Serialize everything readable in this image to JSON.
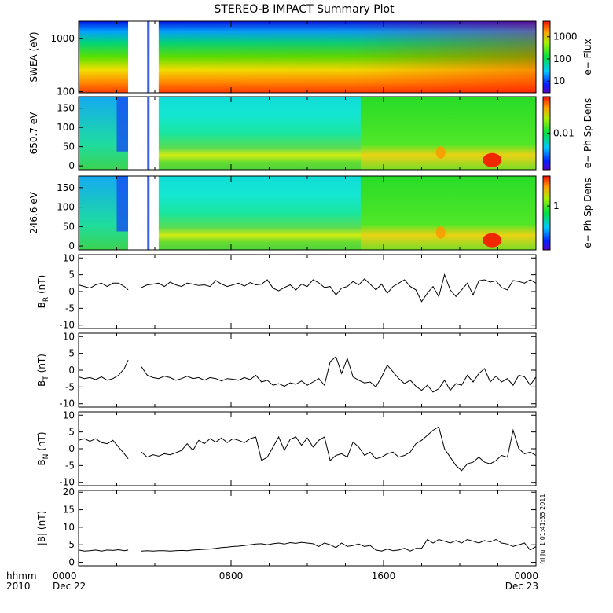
{
  "title": "STEREO-B IMPACT Summary Plot",
  "stamp": "fri Jul  1 01:41:35 2011",
  "time_axis": {
    "row_label": "hhmm",
    "year": "2010",
    "ticks": [
      {
        "h": 0,
        "label": "0000",
        "date": "Dec 22"
      },
      {
        "h": 8,
        "label": "0800",
        "date": ""
      },
      {
        "h": 16,
        "label": "1600",
        "date": ""
      },
      {
        "h": 24,
        "label": "0000",
        "date": "Dec 23"
      }
    ]
  },
  "chart_data": [
    {
      "type": "heatmap",
      "name": "swea",
      "ylabel": "SWEA (eV)",
      "yscale": "log",
      "ylim": [
        95,
        2100
      ],
      "yticks": [
        {
          "v": 100,
          "label": "100"
        },
        {
          "v": 1000,
          "label": "1000"
        }
      ],
      "colorbar": {
        "label": "e− Flux",
        "scale": "log",
        "range": [
          3,
          5000
        ],
        "ticks": [
          {
            "v": 10,
            "label": "10"
          },
          {
            "v": 100,
            "label": "100"
          },
          {
            "v": 1000,
            "label": "1000"
          }
        ]
      },
      "data_gaps_hours": [
        [
          2.6,
          3.6
        ],
        [
          3.72,
          4.2
        ]
      ]
    },
    {
      "type": "heatmap",
      "name": "pad650",
      "ylabel": "650.7 eV",
      "ylim": [
        -10,
        180
      ],
      "yticks": [
        {
          "v": 0,
          "label": "0"
        },
        {
          "v": 50,
          "label": "50"
        },
        {
          "v": 100,
          "label": "100"
        },
        {
          "v": 150,
          "label": "150"
        }
      ],
      "colorbar": {
        "label": "e− Ph Sp Dens",
        "scale": "log",
        "range": [
          0.002,
          0.05
        ],
        "ticks": [
          {
            "v": 0.01,
            "label": "0.01"
          }
        ]
      },
      "data_gaps_hours": [
        [
          2.6,
          3.6
        ],
        [
          3.72,
          4.2
        ]
      ]
    },
    {
      "type": "heatmap",
      "name": "pad246",
      "ylabel": "246.6 eV",
      "ylim": [
        -10,
        180
      ],
      "yticks": [
        {
          "v": 0,
          "label": "0"
        },
        {
          "v": 50,
          "label": "50"
        },
        {
          "v": 100,
          "label": "100"
        },
        {
          "v": 150,
          "label": "150"
        }
      ],
      "colorbar": {
        "label": "e− Ph Sp Dens",
        "scale": "log",
        "range": [
          0.2,
          3
        ],
        "ticks": [
          {
            "v": 1,
            "label": "1"
          }
        ]
      },
      "data_gaps_hours": [
        [
          2.6,
          3.6
        ],
        [
          3.72,
          4.2
        ]
      ]
    },
    {
      "type": "line",
      "name": "br",
      "ylabel": "B",
      "ysub": "R",
      "yunit": "(nT)",
      "ylim": [
        -11,
        11
      ],
      "yticks": [
        -10,
        -5,
        0,
        5,
        10
      ],
      "x": [
        0,
        0.3,
        0.6,
        0.9,
        1.2,
        1.5,
        1.8,
        2.1,
        2.4,
        2.6,
        3.0,
        3.3,
        3.6,
        3.9,
        4.2,
        4.5,
        4.8,
        5.1,
        5.4,
        5.7,
        6.0,
        6.3,
        6.6,
        6.9,
        7.2,
        7.5,
        7.8,
        8.1,
        8.4,
        8.7,
        9.0,
        9.3,
        9.6,
        9.9,
        10.2,
        10.5,
        10.8,
        11.1,
        11.4,
        11.7,
        12.0,
        12.3,
        12.6,
        12.9,
        13.2,
        13.5,
        13.8,
        14.1,
        14.4,
        14.7,
        15.0,
        15.3,
        15.6,
        15.9,
        16.2,
        16.5,
        16.8,
        17.1,
        17.4,
        17.7,
        18.0,
        18.3,
        18.6,
        18.9,
        19.2,
        19.5,
        19.8,
        20.1,
        20.4,
        20.7,
        21.0,
        21.3,
        21.6,
        21.9,
        22.2,
        22.5,
        22.8,
        23.1,
        23.4,
        23.7,
        24.0
      ],
      "y": [
        2,
        1.5,
        1,
        2,
        2.5,
        1.5,
        2.5,
        2.5,
        1.5,
        0.5,
        null,
        1.2,
        2,
        2.2,
        2.5,
        1.5,
        2.8,
        2,
        1.5,
        2.5,
        2.2,
        1.8,
        2,
        1.5,
        3.3,
        2.2,
        1.5,
        2,
        2.5,
        1.6,
        2.7,
        2,
        2.2,
        3.5,
        1,
        0.2,
        1.2,
        2,
        0.5,
        2.2,
        1.5,
        3.5,
        2.6,
        1.2,
        1.5,
        -1,
        1,
        1.5,
        3,
        2,
        3.8,
        2.2,
        0.5,
        2.2,
        -0.5,
        1.5,
        2.5,
        3.5,
        1.5,
        0.5,
        -3,
        -0.5,
        1.5,
        -1.5,
        5,
        0.5,
        -1.5,
        0.5,
        2.5,
        -1,
        3.2,
        3.5,
        2.8,
        3.2,
        1.2,
        0.5,
        3.3,
        3,
        2.5,
        3.5,
        2.5
      ]
    },
    {
      "type": "line",
      "name": "bt",
      "ylabel": "B",
      "ysub": "T",
      "yunit": "(nT)",
      "ylim": [
        -11,
        11
      ],
      "yticks": [
        -10,
        -5,
        0,
        5,
        10
      ],
      "x": [
        0,
        0.3,
        0.6,
        0.9,
        1.2,
        1.5,
        1.8,
        2.1,
        2.4,
        2.6,
        3.0,
        3.3,
        3.6,
        3.9,
        4.2,
        4.5,
        4.8,
        5.1,
        5.4,
        5.7,
        6.0,
        6.3,
        6.6,
        6.9,
        7.2,
        7.5,
        7.8,
        8.1,
        8.4,
        8.7,
        9.0,
        9.3,
        9.6,
        9.9,
        10.2,
        10.5,
        10.8,
        11.1,
        11.4,
        11.7,
        12.0,
        12.3,
        12.6,
        12.9,
        13.2,
        13.5,
        13.8,
        14.1,
        14.4,
        14.7,
        15.0,
        15.3,
        15.6,
        15.9,
        16.2,
        16.5,
        16.8,
        17.1,
        17.4,
        17.7,
        18.0,
        18.3,
        18.6,
        18.9,
        19.2,
        19.5,
        19.8,
        20.1,
        20.4,
        20.7,
        21.0,
        21.3,
        21.6,
        21.9,
        22.2,
        22.5,
        22.8,
        23.1,
        23.4,
        23.7,
        24.0
      ],
      "y": [
        -2,
        -2.5,
        -2.2,
        -2.8,
        -2,
        -3,
        -2.5,
        -1.5,
        0.5,
        3,
        null,
        1,
        -1.5,
        -2.2,
        -2.5,
        -1.8,
        -2.2,
        -3,
        -2.5,
        -1.8,
        -2.5,
        -2.2,
        -3,
        -2.2,
        -2.5,
        -3.2,
        -2.5,
        -2.7,
        -3,
        -2.2,
        -2.8,
        -1.5,
        -3.5,
        -3,
        -4.5,
        -4,
        -4.8,
        -3.8,
        -4.2,
        -3.2,
        -4.5,
        -3.5,
        -2.5,
        -4.5,
        2.5,
        4,
        -1,
        3.5,
        -2,
        -3,
        -3.8,
        -3.5,
        -5,
        -2,
        1.5,
        -0.5,
        -2.5,
        -4,
        -3,
        -4.8,
        -6,
        -4.5,
        -6.5,
        -5.5,
        -3,
        -6,
        -4,
        -4.5,
        -1.5,
        -3.5,
        -1,
        0.5,
        -3.5,
        -1.8,
        -3.5,
        -2.5,
        -4.5,
        -1.5,
        -2,
        -4.5,
        -2
      ]
    },
    {
      "type": "line",
      "name": "bn",
      "ylabel": "B",
      "ysub": "N",
      "yunit": "(nT)",
      "ylim": [
        -11,
        11
      ],
      "yticks": [
        -10,
        -5,
        0,
        5,
        10
      ],
      "x": [
        0,
        0.3,
        0.6,
        0.9,
        1.2,
        1.5,
        1.8,
        2.1,
        2.4,
        2.6,
        3.0,
        3.3,
        3.6,
        3.9,
        4.2,
        4.5,
        4.8,
        5.1,
        5.4,
        5.7,
        6.0,
        6.3,
        6.6,
        6.9,
        7.2,
        7.5,
        7.8,
        8.1,
        8.4,
        8.7,
        9.0,
        9.3,
        9.6,
        9.9,
        10.2,
        10.5,
        10.8,
        11.1,
        11.4,
        11.7,
        12.0,
        12.3,
        12.6,
        12.9,
        13.2,
        13.5,
        13.8,
        14.1,
        14.4,
        14.7,
        15.0,
        15.3,
        15.6,
        15.9,
        16.2,
        16.5,
        16.8,
        17.1,
        17.4,
        17.7,
        18.0,
        18.3,
        18.6,
        18.9,
        19.2,
        19.5,
        19.8,
        20.1,
        20.4,
        20.7,
        21.0,
        21.3,
        21.6,
        21.9,
        22.2,
        22.5,
        22.8,
        23.1,
        23.4,
        23.7,
        24.0
      ],
      "y": [
        2.5,
        3,
        2.2,
        3,
        1.8,
        1.5,
        2.5,
        0.5,
        -1.5,
        -3,
        null,
        -1,
        -2.5,
        -1.8,
        -2.2,
        -1.5,
        -1.8,
        -1.2,
        -0.5,
        1.5,
        -0.5,
        2.5,
        1.5,
        3,
        2,
        3.2,
        1.8,
        3,
        2.5,
        1.8,
        3,
        3.5,
        -3.5,
        -2.5,
        0.5,
        3.5,
        -0.5,
        2.8,
        3.5,
        1,
        3.2,
        0.5,
        2.5,
        3.5,
        -3.5,
        -2,
        -1.5,
        -2.5,
        2,
        0.5,
        -2,
        -1,
        -3,
        -2.5,
        -1.5,
        -1,
        -2.5,
        -2,
        -1,
        1.5,
        2.5,
        4,
        5.5,
        6.5,
        0,
        -2.5,
        -5,
        -6.5,
        -4.5,
        -4,
        -2.5,
        -4,
        -4.5,
        -3.5,
        -2,
        -2.5,
        5.5,
        0,
        -1.5,
        -1,
        -2
      ]
    },
    {
      "type": "line",
      "name": "bmag",
      "ylabel": "|B| (nT)",
      "ylim": [
        -1,
        20.5
      ],
      "yticks": [
        0,
        5,
        10,
        15,
        20
      ],
      "x": [
        0,
        0.3,
        0.6,
        0.9,
        1.2,
        1.5,
        1.8,
        2.1,
        2.4,
        2.6,
        3.0,
        3.3,
        3.6,
        3.9,
        4.2,
        4.5,
        4.8,
        5.1,
        5.4,
        5.7,
        6.0,
        6.3,
        6.6,
        6.9,
        7.2,
        7.5,
        7.8,
        8.1,
        8.4,
        8.7,
        9.0,
        9.3,
        9.6,
        9.9,
        10.2,
        10.5,
        10.8,
        11.1,
        11.4,
        11.7,
        12.0,
        12.3,
        12.6,
        12.9,
        13.2,
        13.5,
        13.8,
        14.1,
        14.4,
        14.7,
        15.0,
        15.3,
        15.6,
        15.9,
        16.2,
        16.5,
        16.8,
        17.1,
        17.4,
        17.7,
        18.0,
        18.3,
        18.6,
        18.9,
        19.2,
        19.5,
        19.8,
        20.1,
        20.4,
        20.7,
        21.0,
        21.3,
        21.6,
        21.9,
        22.2,
        22.5,
        22.8,
        23.1,
        23.4,
        23.7,
        24.0
      ],
      "y": [
        3.5,
        3.2,
        3.3,
        3.5,
        3.2,
        3.5,
        3.4,
        3.6,
        3.3,
        3.5,
        null,
        3.2,
        3.3,
        3.2,
        3.3,
        3.3,
        3.2,
        3.3,
        3.4,
        3.3,
        3.5,
        3.6,
        3.7,
        3.8,
        4,
        4.2,
        4.3,
        4.5,
        4.6,
        4.8,
        5,
        5.2,
        5.3,
        5,
        5.3,
        5.5,
        5.2,
        5.6,
        5.4,
        5.7,
        5.5,
        5.3,
        4.5,
        5.5,
        5,
        4.2,
        5.5,
        4.5,
        4.8,
        5.2,
        4.5,
        4.8,
        3.5,
        3.2,
        3.8,
        3.3,
        3.5,
        4,
        3.2,
        4,
        4,
        6.5,
        5.5,
        6.5,
        6,
        5.5,
        6.2,
        5.5,
        6.5,
        6,
        5.5,
        6.2,
        5.8,
        6.5,
        5.5,
        5.2,
        4.5,
        5,
        5.5,
        3.5,
        4.5
      ]
    }
  ]
}
